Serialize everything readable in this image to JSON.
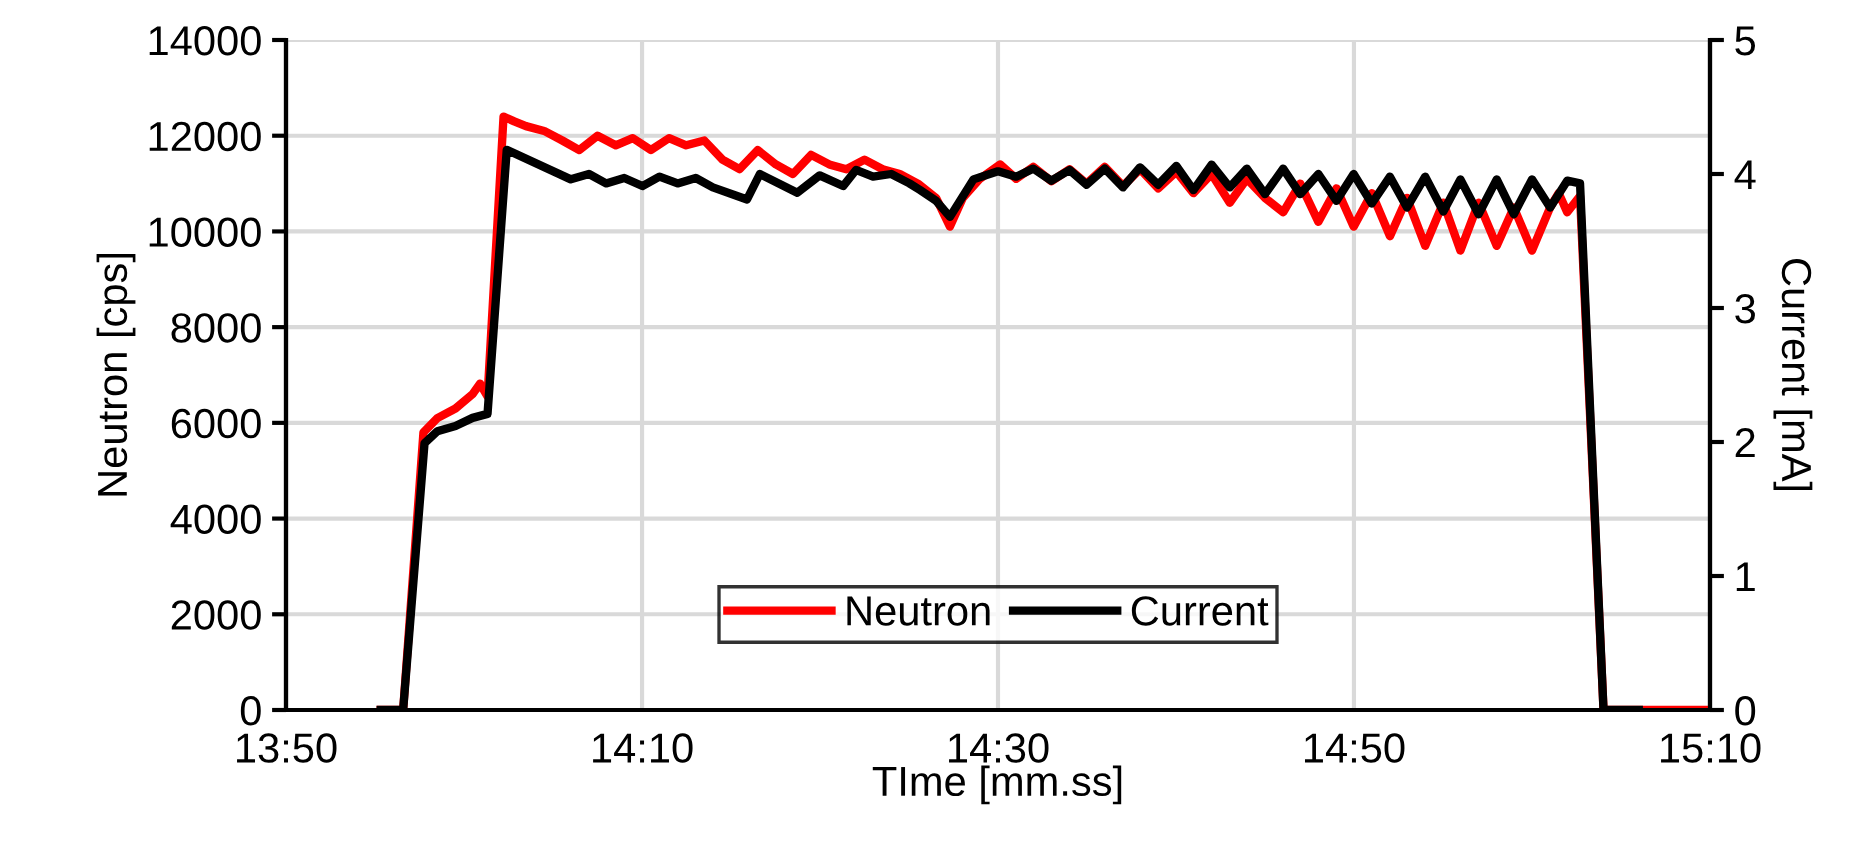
{
  "chart_data": {
    "type": "line",
    "xlabel": "TIme [mm.ss]",
    "ylabel": "Neutron [cps]",
    "y2label": "Current [mA]",
    "xlim": [
      13.8333,
      15.1667
    ],
    "xticks": [
      {
        "value": 13.8333,
        "label": "13:50"
      },
      {
        "value": 14.1667,
        "label": "14:10"
      },
      {
        "value": 14.5,
        "label": "14:30"
      },
      {
        "value": 14.8333,
        "label": "14:50"
      },
      {
        "value": 15.1667,
        "label": "15:10"
      }
    ],
    "ylim": [
      0,
      14000
    ],
    "yticks": [
      0,
      2000,
      4000,
      6000,
      8000,
      10000,
      12000,
      14000
    ],
    "y2lim": [
      0,
      5
    ],
    "y2ticks": [
      0,
      1,
      2,
      3,
      4,
      5
    ],
    "grid": true,
    "legend": "bottom",
    "series": [
      {
        "name": "Neutron",
        "color": "#ff0000",
        "x": [
          13.922,
          13.943,
          13.962,
          13.975,
          13.992,
          14.008,
          14.015,
          14.022,
          14.037,
          14.047,
          14.058,
          14.075,
          14.092,
          14.108,
          14.125,
          14.142,
          14.158,
          14.175,
          14.192,
          14.208,
          14.225,
          14.242,
          14.258,
          14.275,
          14.292,
          14.308,
          14.325,
          14.342,
          14.358,
          14.375,
          14.392,
          14.408,
          14.425,
          14.442,
          14.455,
          14.467,
          14.483,
          14.502,
          14.517,
          14.533,
          14.55,
          14.567,
          14.583,
          14.6,
          14.617,
          14.633,
          14.65,
          14.667,
          14.683,
          14.7,
          14.717,
          14.733,
          14.75,
          14.767,
          14.783,
          14.8,
          14.817,
          14.833,
          14.85,
          14.867,
          14.883,
          14.9,
          14.917,
          14.933,
          14.95,
          14.967,
          14.983,
          15.0,
          15.017,
          15.025,
          15.033,
          15.045,
          15.067,
          15.1667
        ],
        "values": [
          0,
          0,
          5800,
          6100,
          6300,
          6600,
          6820,
          6550,
          12400,
          12300,
          12200,
          12100,
          11900,
          11700,
          12000,
          11800,
          11950,
          11700,
          11950,
          11800,
          11900,
          11500,
          11300,
          11700,
          11400,
          11200,
          11600,
          11400,
          11300,
          11500,
          11300,
          11200,
          11000,
          10700,
          10100,
          10700,
          11100,
          11400,
          11100,
          11350,
          11050,
          11300,
          11000,
          11350,
          10950,
          11300,
          10900,
          11250,
          10800,
          11200,
          10600,
          11100,
          10700,
          10400,
          11000,
          10200,
          10900,
          10100,
          10800,
          9900,
          10700,
          9700,
          10600,
          9600,
          10600,
          9700,
          10500,
          9600,
          10500,
          10800,
          10400,
          10740,
          0,
          0
        ]
      },
      {
        "name": "Current",
        "color": "#000000",
        "axis": "y2",
        "x": [
          13.922,
          13.943,
          13.963,
          13.975,
          13.992,
          14.008,
          14.022,
          14.04,
          14.1,
          14.117,
          14.133,
          14.15,
          14.167,
          14.183,
          14.2,
          14.217,
          14.233,
          14.265,
          14.277,
          14.312,
          14.333,
          14.355,
          14.367,
          14.383,
          14.4,
          14.417,
          14.427,
          14.442,
          14.455,
          14.477,
          14.5,
          14.517,
          14.533,
          14.55,
          14.567,
          14.583,
          14.6,
          14.617,
          14.633,
          14.65,
          14.667,
          14.683,
          14.7,
          14.717,
          14.733,
          14.75,
          14.767,
          14.783,
          14.8,
          14.817,
          14.833,
          14.85,
          14.867,
          14.883,
          14.9,
          14.917,
          14.933,
          14.95,
          14.967,
          14.983,
          15.0,
          15.017,
          15.033,
          15.045,
          15.067,
          15.1
        ],
        "values": [
          0,
          0,
          1.99,
          2.08,
          2.12,
          2.18,
          2.21,
          4.18,
          3.96,
          4.0,
          3.93,
          3.97,
          3.91,
          3.98,
          3.93,
          3.97,
          3.9,
          3.81,
          4.0,
          3.86,
          3.99,
          3.91,
          4.03,
          3.98,
          4.0,
          3.93,
          3.88,
          3.8,
          3.68,
          3.96,
          4.02,
          3.98,
          4.04,
          3.95,
          4.03,
          3.92,
          4.04,
          3.9,
          4.05,
          3.92,
          4.06,
          3.88,
          4.07,
          3.9,
          4.04,
          3.85,
          4.04,
          3.85,
          4.0,
          3.8,
          4.0,
          3.78,
          3.98,
          3.75,
          3.98,
          3.72,
          3.96,
          3.7,
          3.96,
          3.7,
          3.96,
          3.75,
          3.95,
          3.93,
          0,
          0
        ]
      }
    ]
  }
}
